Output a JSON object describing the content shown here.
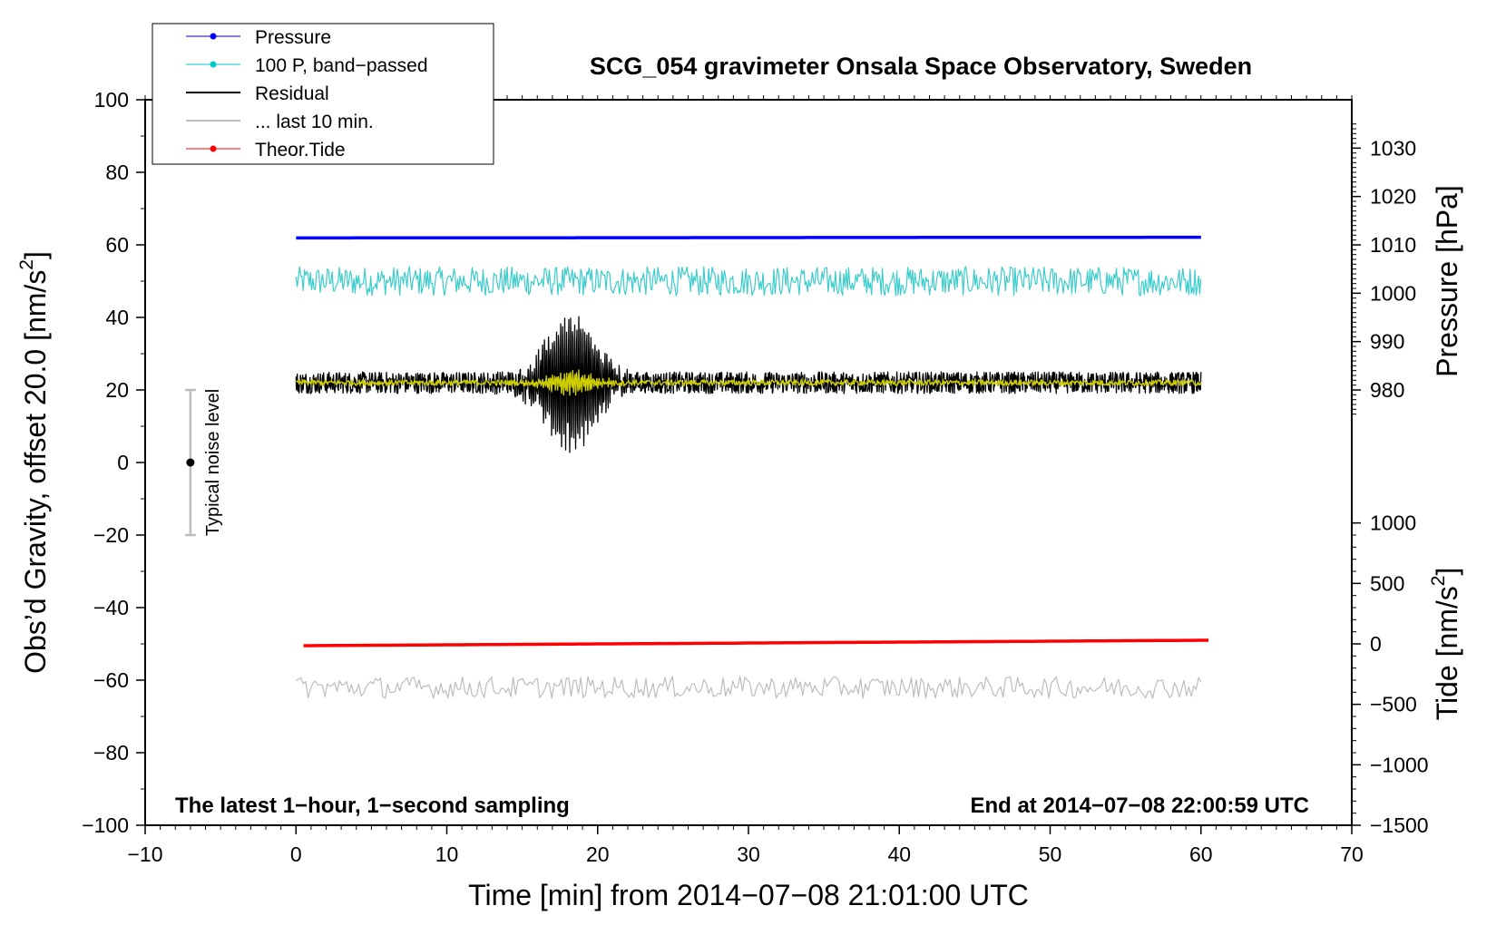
{
  "chart_data": {
    "type": "line",
    "title": "SCG_054 gravimeter Onsala Space Observatory, Sweden",
    "xlabel": "Time [min] from 2014−07−08 21:01:00 UTC",
    "ylabel_left": "Obs’d Gravity, offset 20.0 [nm/s²]",
    "ylabel_left_parts": {
      "main": "Obs’d Gravity, offset 20.0 [nm/s",
      "sup": "2",
      "end": "]"
    },
    "ylabel_right_top": "Pressure [hPa]",
    "ylabel_right_bottom": "Tide [nm/s²]",
    "ylabel_right_bottom_parts": {
      "main": "Tide [nm/s",
      "sup": "2",
      "end": "]"
    },
    "xlim": [
      -10,
      70
    ],
    "ylim": [
      -100,
      100
    ],
    "xticks": [
      -10,
      0,
      10,
      20,
      30,
      40,
      50,
      60,
      70
    ],
    "xtick_labels": [
      "−10",
      "0",
      "10",
      "20",
      "30",
      "40",
      "50",
      "60",
      "70"
    ],
    "yticks": [
      100,
      80,
      60,
      40,
      20,
      0,
      -20,
      -40,
      -60,
      -80,
      -100
    ],
    "ytick_labels": [
      "100",
      "80",
      "60",
      "40",
      "20",
      "0",
      "−20",
      "−40",
      "−60",
      "−80",
      "−100"
    ],
    "pressure_axis": {
      "ticks": [
        1030,
        1020,
        1010,
        1000,
        990,
        980
      ],
      "tick_labels": [
        "1030",
        "1020",
        "1010",
        "1000",
        "990",
        "980"
      ],
      "map": {
        "hpa_at_gravity_60": 1010,
        "hpa_at_gravity_20": 980
      }
    },
    "tide_axis": {
      "ticks": [
        1000,
        500,
        0,
        -500,
        -1000,
        -1500
      ],
      "tick_labels": [
        "1000",
        "500",
        "0",
        "−500",
        "−1000",
        "−1500"
      ],
      "map": {
        "tide_at_gravity_m50": 0,
        "tide_at_gravity_m100": -1500
      }
    },
    "legend": {
      "position": "top-left",
      "entries": [
        {
          "label": "Pressure",
          "color": "#0000ff",
          "marker": true
        },
        {
          "label": "100 P, band−passed",
          "color": "#00c8c8",
          "marker": true
        },
        {
          "label": "Residual",
          "color": "#000000",
          "marker": false
        },
        {
          "label": "... last 10 min.",
          "color": "#bdbdbd",
          "marker": false
        },
        {
          "label": "Theor.Tide",
          "color": "#ff0000",
          "marker": true
        }
      ]
    },
    "series": [
      {
        "name": "Pressure",
        "color": "#0000ff",
        "x_range": [
          0,
          60
        ],
        "level": 61.9,
        "level_end": 62.1,
        "noise_amp": 0
      },
      {
        "name": "100 P, band−passed",
        "color": "#3ccccc",
        "x_range": [
          0,
          60
        ],
        "level": 50,
        "noise_amp": 4
      },
      {
        "name": "Residual",
        "color": "#000000",
        "x_range": [
          0,
          60
        ],
        "level": 22,
        "noise_amp": 3,
        "burst": {
          "center": 18.2,
          "width": 2.3,
          "amp": 17
        }
      },
      {
        "name": "Residual (filtered)",
        "color": "#cccc00",
        "x_range": [
          0,
          60
        ],
        "level": 22,
        "noise_amp": 0.8,
        "burst": {
          "center": 18.2,
          "width": 2.0,
          "amp": 3
        }
      },
      {
        "name": "... last 10 min.",
        "color": "#bdbdbd",
        "x_range": [
          0,
          60
        ],
        "level": -62,
        "noise_amp": 3
      },
      {
        "name": "Theor.Tide",
        "color": "#ff0000",
        "x_range": [
          0.5,
          60.5
        ],
        "level": -50.5,
        "level_end": -49.0,
        "noise_amp": 0
      }
    ],
    "noise_bar": {
      "x": -7,
      "center": 0,
      "half_range": 20,
      "label": "Typical noise level"
    },
    "annotations": {
      "left": "The latest 1−hour, 1−second sampling",
      "right": "End at 2014−07−08 22:00:59 UTC"
    }
  }
}
